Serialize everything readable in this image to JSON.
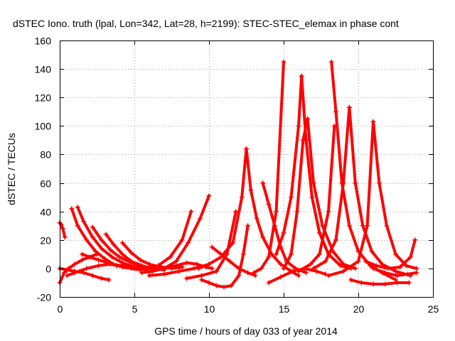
{
  "chart_data": {
    "type": "scatter",
    "title": "dSTEC Iono. truth (lpal, Lon=342, Lat=28, h=2199): STEC-STEC_elemax in phase cont",
    "xlabel": "GPS time / hours of day 033 of year 2014",
    "ylabel": "dSTEC  / TECUs",
    "xlim": [
      0,
      25
    ],
    "ylim": [
      -20,
      160
    ],
    "xticks": [
      0,
      5,
      10,
      15,
      20,
      25
    ],
    "yticks": [
      -20,
      0,
      20,
      40,
      60,
      80,
      100,
      120,
      140,
      160
    ],
    "grid": true,
    "marker": "+",
    "color": "#ff0000",
    "series": [
      {
        "x": [
          0.0,
          0.1,
          0.2,
          0.35
        ],
        "y": [
          32,
          31,
          28,
          22
        ]
      },
      {
        "x": [
          0.0,
          0.5,
          1.0,
          1.6,
          2.2,
          2.8,
          3.3
        ],
        "y": [
          0,
          -1,
          -2,
          -3,
          -5,
          -7,
          -8
        ]
      },
      {
        "x": [
          0.0,
          0.3,
          0.6,
          1.0,
          1.5,
          2.0,
          2.5
        ],
        "y": [
          -10,
          -3,
          0,
          3,
          6,
          8,
          10
        ]
      },
      {
        "x": [
          0.8,
          1.2,
          1.8,
          2.4,
          3.0,
          3.6,
          4.2,
          4.8,
          5.4
        ],
        "y": [
          42,
          30,
          20,
          12,
          7,
          3,
          1,
          0,
          -1
        ]
      },
      {
        "x": [
          1.2,
          1.6,
          2.2,
          2.8,
          3.5,
          4.2,
          5.0,
          5.8
        ],
        "y": [
          43,
          33,
          22,
          14,
          8,
          4,
          1,
          -1
        ]
      },
      {
        "x": [
          2.2,
          2.8,
          3.4,
          4.0,
          4.8,
          5.6,
          6.4
        ],
        "y": [
          29,
          20,
          13,
          8,
          4,
          1,
          -1
        ]
      },
      {
        "x": [
          3.1,
          3.6,
          4.2,
          4.8,
          5.5,
          6.2,
          7.0
        ],
        "y": [
          24,
          17,
          10,
          5,
          2,
          0,
          -1
        ]
      },
      {
        "x": [
          4.2,
          4.8,
          5.4,
          6.0,
          6.8,
          7.5,
          8.2
        ],
        "y": [
          18,
          11,
          6,
          3,
          1,
          0,
          1
        ]
      },
      {
        "x": [
          1.5,
          2.0,
          2.6,
          3.2,
          3.8,
          4.4,
          5.0,
          5.6
        ],
        "y": [
          10,
          8,
          6,
          4,
          2,
          1,
          0,
          0
        ]
      },
      {
        "x": [
          0.5,
          1.0,
          1.8,
          2.6,
          3.4,
          4.2,
          5.0,
          5.8,
          6.6,
          7.4,
          8.2,
          8.8
        ],
        "y": [
          -5,
          -3,
          0,
          2,
          3,
          2,
          1,
          0,
          2,
          8,
          20,
          40
        ]
      },
      {
        "x": [
          5.5,
          6.2,
          7.0,
          7.8,
          8.6,
          9.4,
          10.0
        ],
        "y": [
          -3,
          -2,
          0,
          5,
          18,
          35,
          51
        ]
      },
      {
        "x": [
          6.0,
          7.0,
          8.0,
          9.0,
          10.0
        ],
        "y": [
          -5,
          -4,
          -2,
          0,
          3
        ]
      },
      {
        "x": [
          7.0,
          7.8,
          8.5,
          9.2,
          9.8,
          10.2
        ],
        "y": [
          0,
          2,
          4,
          3,
          1,
          0
        ]
      },
      {
        "x": [
          8.5,
          9.5,
          10.5,
          11.2,
          11.8
        ],
        "y": [
          -7,
          -5,
          -2,
          10,
          40
        ]
      },
      {
        "x": [
          9.5,
          10.0,
          10.5,
          11.0,
          11.5,
          12.0,
          12.3,
          12.6
        ],
        "y": [
          -8,
          -10,
          -12,
          -13,
          -12,
          -5,
          10,
          30
        ]
      },
      {
        "x": [
          9.3,
          10.0,
          10.8,
          11.6,
          12.2,
          12.5
        ],
        "y": [
          0,
          3,
          8,
          18,
          50,
          84
        ]
      },
      {
        "x": [
          12.5,
          12.8,
          13.2,
          13.6,
          14.2,
          14.8,
          15.5,
          16.0
        ],
        "y": [
          84,
          55,
          35,
          22,
          10,
          3,
          -2,
          -5
        ]
      },
      {
        "x": [
          10.2,
          10.8,
          11.4,
          12.0,
          12.6,
          13.1
        ],
        "y": [
          15,
          10,
          5,
          0,
          -3,
          -5
        ]
      },
      {
        "x": [
          13.0,
          13.5,
          14.0,
          14.5,
          15.0
        ],
        "y": [
          -3,
          0,
          8,
          40,
          145
        ]
      },
      {
        "x": [
          13.6,
          14.0,
          14.4,
          14.8,
          15.2,
          15.8,
          16.5
        ],
        "y": [
          60,
          45,
          30,
          15,
          5,
          0,
          -3
        ]
      },
      {
        "x": [
          14.5,
          15.0,
          15.5,
          16.0,
          16.2
        ],
        "y": [
          10,
          25,
          50,
          100,
          135
        ]
      },
      {
        "x": [
          16.2,
          16.5,
          16.9,
          17.4,
          18.0,
          18.8,
          19.5
        ],
        "y": [
          135,
          90,
          50,
          25,
          10,
          2,
          0
        ]
      },
      {
        "x": [
          15.0,
          15.5,
          15.9,
          16.3,
          16.6
        ],
        "y": [
          0,
          10,
          40,
          90,
          105
        ]
      },
      {
        "x": [
          16.6,
          17.0,
          17.6,
          18.3,
          19.0,
          19.8
        ],
        "y": [
          105,
          60,
          30,
          12,
          3,
          0
        ]
      },
      {
        "x": [
          14.0,
          14.8,
          15.6,
          16.4,
          17.2,
          17.8
        ],
        "y": [
          -10,
          -6,
          -2,
          0,
          -2,
          -4
        ]
      },
      {
        "x": [
          16.0,
          16.8,
          17.4,
          18.0,
          18.4
        ],
        "y": [
          -2,
          3,
          10,
          40,
          100
        ]
      },
      {
        "x": [
          18.2,
          18.5,
          18.9,
          19.4,
          20.0,
          20.8,
          21.6,
          22.5
        ],
        "y": [
          145,
          110,
          60,
          30,
          12,
          2,
          -3,
          -8
        ]
      },
      {
        "x": [
          17.0,
          17.8,
          18.5,
          19.0,
          19.4
        ],
        "y": [
          0,
          5,
          20,
          60,
          113
        ]
      },
      {
        "x": [
          19.4,
          19.8,
          20.3,
          20.9,
          21.6,
          22.5,
          23.5
        ],
        "y": [
          113,
          60,
          30,
          12,
          3,
          -2,
          -5
        ]
      },
      {
        "x": [
          18.0,
          19.0,
          20.0,
          20.6,
          21.0
        ],
        "y": [
          -5,
          -2,
          5,
          30,
          103
        ]
      },
      {
        "x": [
          21.0,
          21.4,
          21.9,
          22.5,
          23.2,
          23.9
        ],
        "y": [
          103,
          60,
          30,
          10,
          2,
          0
        ]
      },
      {
        "x": [
          19.5,
          20.2,
          21.0,
          21.8,
          22.6,
          23.4
        ],
        "y": [
          -8,
          -10,
          -11,
          -11,
          -10,
          -10
        ]
      },
      {
        "x": [
          20.5,
          21.2,
          22.0,
          22.8,
          23.5,
          23.8
        ],
        "y": [
          5,
          2,
          0,
          1,
          8,
          20
        ]
      },
      {
        "x": [
          21.0,
          21.8,
          22.6,
          23.3,
          23.9
        ],
        "y": [
          0,
          -3,
          -5,
          -4,
          -3
        ]
      }
    ]
  }
}
